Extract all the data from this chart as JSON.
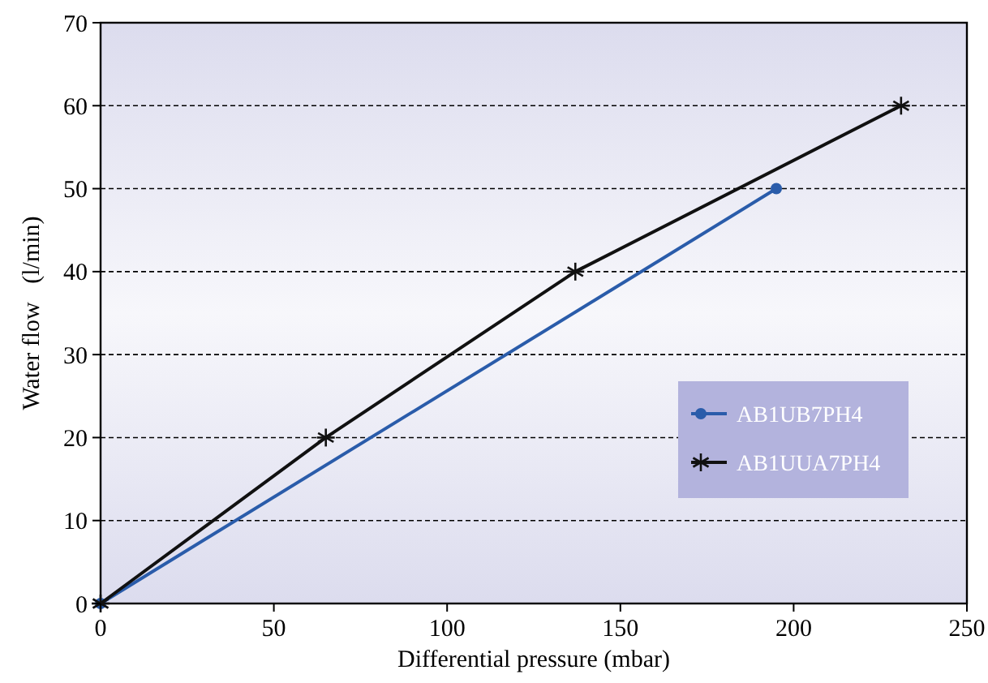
{
  "chart_data": {
    "type": "line",
    "xlabel": "Differential pressure (mbar)",
    "ylabel": "Water flow   (l/min)",
    "xlim": [
      0,
      250
    ],
    "ylim": [
      0,
      70
    ],
    "xticks": [
      0,
      50,
      100,
      150,
      200,
      250
    ],
    "yticks": [
      0,
      10,
      20,
      30,
      40,
      50,
      60,
      70
    ],
    "grid": "y",
    "legend": "right",
    "series": [
      {
        "name": "AB1UB7PH4",
        "color": "#2a5caa",
        "x": [
          0,
          195
        ],
        "values": [
          0,
          50
        ],
        "marker": "circle"
      },
      {
        "name": "AB1UUA7PH4",
        "color": "#111111",
        "x": [
          0,
          65,
          137,
          231
        ],
        "values": [
          0,
          20,
          40,
          60
        ],
        "marker": "cross"
      }
    ]
  }
}
